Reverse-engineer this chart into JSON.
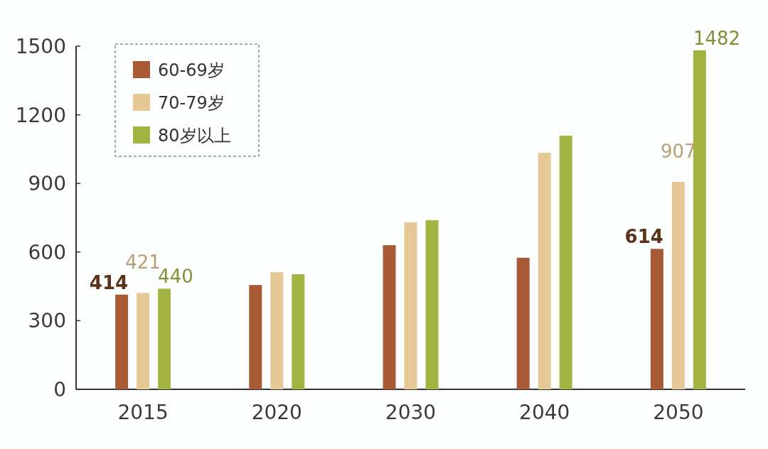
{
  "chart_data": {
    "type": "bar",
    "categories": [
      "2015",
      "2020",
      "2030",
      "2040",
      "2050"
    ],
    "series": [
      {
        "name": "60-69岁",
        "color": "#a85a35",
        "values": [
          414,
          456,
          630,
          575,
          614
        ],
        "value_labels": [
          "414",
          null,
          null,
          null,
          "614"
        ]
      },
      {
        "name": "70-79岁",
        "color": "#e5c896",
        "values": [
          421,
          512,
          730,
          1034,
          907
        ],
        "value_labels": [
          "421",
          null,
          null,
          null,
          "907"
        ]
      },
      {
        "name": "80岁以上",
        "color": "#a3b443",
        "values": [
          440,
          503,
          739,
          1109,
          1482
        ],
        "value_labels": [
          "440",
          null,
          null,
          null,
          "1482"
        ]
      }
    ],
    "ylim": [
      0,
      1500
    ],
    "yticks": [
      0,
      300,
      600,
      900,
      1200,
      1500
    ],
    "grid": false,
    "legend": "top left"
  }
}
